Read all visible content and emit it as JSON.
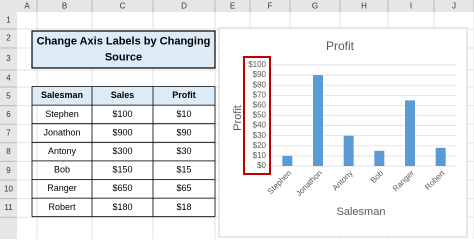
{
  "sheet": {
    "columns": [
      "A",
      "B",
      "C",
      "D",
      "E",
      "F",
      "G",
      "H",
      "I",
      "J"
    ],
    "rows": [
      "1",
      "2",
      "3",
      "4",
      "5",
      "6",
      "7",
      "8",
      "9",
      "10",
      "11"
    ],
    "title": "Change Axis Labels by Changing Source",
    "table": {
      "header": [
        "Salesman",
        "Sales",
        "Profit"
      ],
      "rows": [
        [
          "Stephen",
          "$100",
          "$10"
        ],
        [
          "Jonathon",
          "$900",
          "$90"
        ],
        [
          "Antony",
          "$300",
          "$30"
        ],
        [
          "Bob",
          "$150",
          "$15"
        ],
        [
          "Ranger",
          "$650",
          "$65"
        ],
        [
          "Robert",
          "$180",
          "$18"
        ]
      ]
    }
  },
  "chart_data": {
    "type": "bar",
    "title": "Profit",
    "x_label": "Salesman",
    "y_label": "Profit",
    "categories": [
      "Stephen",
      "Jonathon",
      "Antony",
      "Bob",
      "Ranger",
      "Robert"
    ],
    "values": [
      10,
      90,
      30,
      15,
      65,
      18
    ],
    "color": "#5b9bd5",
    "ylim": [
      0,
      100
    ],
    "yticks": [
      {
        "value": 0,
        "label": "$0"
      },
      {
        "value": 10,
        "label": "$10"
      },
      {
        "value": 20,
        "label": "$20"
      },
      {
        "value": 30,
        "label": "$30"
      },
      {
        "value": 40,
        "label": "$40"
      },
      {
        "value": 50,
        "label": "$50"
      },
      {
        "value": 60,
        "label": "$60"
      },
      {
        "value": 70,
        "label": "$70"
      },
      {
        "value": 80,
        "label": "$80"
      },
      {
        "value": 90,
        "label": "$90"
      },
      {
        "value": 100,
        "label": "$100"
      }
    ],
    "grid": true
  }
}
